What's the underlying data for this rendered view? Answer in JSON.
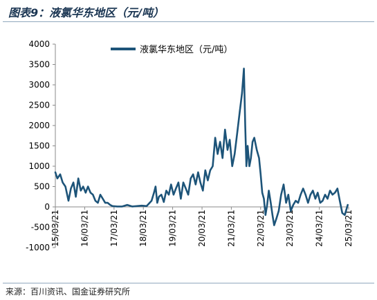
{
  "figure": {
    "caption": "图表9：液氯华东地区（元/吨）",
    "source": "来源：百川资讯、国金证券研究所"
  },
  "colors": {
    "series": "#1d5479",
    "axis": "#8a8a8a",
    "rule": "#8fa7bd",
    "caption": "#1a3552"
  },
  "chart_data": {
    "type": "line",
    "title": "",
    "xlabel": "",
    "ylabel": "",
    "ylim": [
      -1000,
      4000
    ],
    "yticks": [
      "4000",
      "3500",
      "3000",
      "2500",
      "2000",
      "1500",
      "1000",
      "500",
      "0",
      "-500",
      "-1000"
    ],
    "xticks": [
      "15/03/21",
      "16/03/21",
      "17/03/21",
      "18/03/21",
      "19/03/21",
      "20/03/21",
      "21/03/21",
      "22/03/21",
      "23/03/21",
      "24/03/21",
      "25/03/21"
    ],
    "xlim": [
      "2015-03-21",
      "2025-03-21"
    ],
    "legend": {
      "position": "top-center"
    },
    "series": [
      {
        "name": "液氯华东地区（元/吨）",
        "points": [
          [
            "2015-03-21",
            850
          ],
          [
            "2015-04-15",
            700
          ],
          [
            "2015-05-20",
            800
          ],
          [
            "2015-06-20",
            600
          ],
          [
            "2015-07-25",
            500
          ],
          [
            "2015-09-01",
            150
          ],
          [
            "2015-10-01",
            450
          ],
          [
            "2015-11-01",
            600
          ],
          [
            "2015-12-01",
            250
          ],
          [
            "2016-01-01",
            700
          ],
          [
            "2016-02-01",
            400
          ],
          [
            "2016-03-01",
            500
          ],
          [
            "2016-04-01",
            350
          ],
          [
            "2016-05-01",
            500
          ],
          [
            "2016-06-01",
            350
          ],
          [
            "2016-07-01",
            300
          ],
          [
            "2016-08-01",
            150
          ],
          [
            "2016-09-01",
            100
          ],
          [
            "2016-10-01",
            300
          ],
          [
            "2016-11-01",
            200
          ],
          [
            "2016-12-01",
            100
          ],
          [
            "2017-01-01",
            100
          ],
          [
            "2017-02-01",
            50
          ],
          [
            "2017-03-01",
            20
          ],
          [
            "2017-05-01",
            10
          ],
          [
            "2017-07-01",
            10
          ],
          [
            "2017-09-01",
            50
          ],
          [
            "2017-11-01",
            10
          ],
          [
            "2018-01-01",
            20
          ],
          [
            "2018-03-01",
            30
          ],
          [
            "2018-05-01",
            20
          ],
          [
            "2018-07-01",
            150
          ],
          [
            "2018-08-01",
            350
          ],
          [
            "2018-08-20",
            500
          ],
          [
            "2018-09-10",
            100
          ],
          [
            "2018-10-01",
            250
          ],
          [
            "2018-11-01",
            300
          ],
          [
            "2018-12-01",
            120
          ],
          [
            "2019-01-01",
            400
          ],
          [
            "2019-02-01",
            300
          ],
          [
            "2019-03-01",
            550
          ],
          [
            "2019-04-01",
            300
          ],
          [
            "2019-05-01",
            450
          ],
          [
            "2019-06-01",
            600
          ],
          [
            "2019-07-01",
            200
          ],
          [
            "2019-08-01",
            600
          ],
          [
            "2019-09-01",
            450
          ],
          [
            "2019-10-01",
            300
          ],
          [
            "2019-11-01",
            700
          ],
          [
            "2019-12-01",
            800
          ],
          [
            "2020-01-01",
            550
          ],
          [
            "2020-02-01",
            850
          ],
          [
            "2020-03-01",
            600
          ],
          [
            "2020-04-01",
            400
          ],
          [
            "2020-05-01",
            900
          ],
          [
            "2020-06-01",
            650
          ],
          [
            "2020-07-01",
            900
          ],
          [
            "2020-08-01",
            1000
          ],
          [
            "2020-09-01",
            1700
          ],
          [
            "2020-10-01",
            1300
          ],
          [
            "2020-11-01",
            1600
          ],
          [
            "2020-12-01",
            1200
          ],
          [
            "2021-01-01",
            1900
          ],
          [
            "2021-02-01",
            1400
          ],
          [
            "2021-03-01",
            1650
          ],
          [
            "2021-04-01",
            1000
          ],
          [
            "2021-05-01",
            1300
          ],
          [
            "2021-06-01",
            1800
          ],
          [
            "2021-07-01",
            2300
          ],
          [
            "2021-08-01",
            2800
          ],
          [
            "2021-08-25",
            3400
          ],
          [
            "2021-09-10",
            2000
          ],
          [
            "2021-09-25",
            1000
          ],
          [
            "2021-10-10",
            1500
          ],
          [
            "2021-11-01",
            1000
          ],
          [
            "2021-11-20",
            1200
          ],
          [
            "2021-12-10",
            1600
          ],
          [
            "2022-01-01",
            1700
          ],
          [
            "2022-02-01",
            1400
          ],
          [
            "2022-03-01",
            1200
          ],
          [
            "2022-03-21",
            800
          ],
          [
            "2022-04-10",
            350
          ],
          [
            "2022-05-01",
            200
          ],
          [
            "2022-05-20",
            -200
          ],
          [
            "2022-06-10",
            50
          ],
          [
            "2022-07-01",
            400
          ],
          [
            "2022-07-25",
            100
          ],
          [
            "2022-08-15",
            -200
          ],
          [
            "2022-09-05",
            -450
          ],
          [
            "2022-10-01",
            -300
          ],
          [
            "2022-11-01",
            -100
          ],
          [
            "2022-12-01",
            300
          ],
          [
            "2023-01-01",
            550
          ],
          [
            "2023-02-01",
            100
          ],
          [
            "2023-03-01",
            300
          ],
          [
            "2023-04-01",
            -100
          ],
          [
            "2023-05-01",
            50
          ],
          [
            "2023-06-01",
            150
          ],
          [
            "2023-07-01",
            100
          ],
          [
            "2023-08-01",
            300
          ],
          [
            "2023-09-01",
            450
          ],
          [
            "2023-10-01",
            300
          ],
          [
            "2023-11-01",
            100
          ],
          [
            "2023-12-01",
            300
          ],
          [
            "2024-01-01",
            400
          ],
          [
            "2024-02-01",
            200
          ],
          [
            "2024-03-01",
            350
          ],
          [
            "2024-04-01",
            100
          ],
          [
            "2024-05-01",
            150
          ],
          [
            "2024-06-01",
            300
          ],
          [
            "2024-07-01",
            200
          ],
          [
            "2024-08-01",
            400
          ],
          [
            "2024-09-01",
            300
          ],
          [
            "2024-10-01",
            350
          ],
          [
            "2024-11-01",
            450
          ],
          [
            "2024-12-01",
            150
          ],
          [
            "2025-01-01",
            -150
          ],
          [
            "2025-02-01",
            -200
          ],
          [
            "2025-03-10",
            50
          ]
        ]
      }
    ]
  }
}
